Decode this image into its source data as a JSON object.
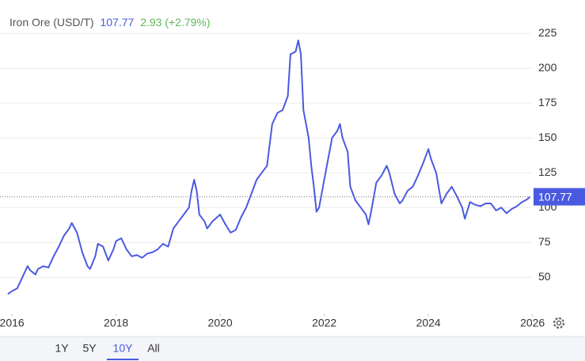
{
  "chart_data": {
    "type": "line",
    "title": "Iron Ore (USD/T)",
    "last_price": 107.77,
    "change": "2.93 (+2.79%)",
    "xlim": [
      2015.77,
      2025.99
    ],
    "xticks": [
      2016,
      2018,
      2020,
      2022,
      2024,
      2026
    ],
    "ylim": [
      24,
      249
    ],
    "yticks": [
      50,
      75,
      100,
      125,
      150,
      175,
      200,
      225
    ],
    "grid": true,
    "ranges": [
      "1Y",
      "5Y",
      "10Y",
      "All"
    ],
    "selected_range": "10Y",
    "series": [
      {
        "name": "Iron Ore",
        "color": "#4a5ae0",
        "x": [
          2015.92,
          2016.0,
          2016.1,
          2016.2,
          2016.3,
          2016.35,
          2016.45,
          2016.5,
          2016.6,
          2016.7,
          2016.8,
          2016.9,
          2017.0,
          2017.1,
          2017.15,
          2017.25,
          2017.35,
          2017.45,
          2017.5,
          2017.6,
          2017.65,
          2017.75,
          2017.85,
          2017.95,
          2018.0,
          2018.1,
          2018.2,
          2018.3,
          2018.4,
          2018.5,
          2018.6,
          2018.7,
          2018.8,
          2018.9,
          2019.0,
          2019.1,
          2019.2,
          2019.3,
          2019.4,
          2019.45,
          2019.5,
          2019.55,
          2019.6,
          2019.7,
          2019.75,
          2019.85,
          2020.0,
          2020.1,
          2020.2,
          2020.3,
          2020.4,
          2020.5,
          2020.6,
          2020.7,
          2020.8,
          2020.9,
          2021.0,
          2021.1,
          2021.2,
          2021.3,
          2021.35,
          2021.45,
          2021.5,
          2021.55,
          2021.6,
          2021.7,
          2021.75,
          2021.8,
          2021.85,
          2021.9,
          2022.0,
          2022.1,
          2022.15,
          2022.25,
          2022.3,
          2022.35,
          2022.45,
          2022.5,
          2022.6,
          2022.7,
          2022.8,
          2022.85,
          2022.9,
          2023.0,
          2023.1,
          2023.2,
          2023.25,
          2023.35,
          2023.45,
          2023.5,
          2023.6,
          2023.7,
          2023.8,
          2023.9,
          2024.0,
          2024.05,
          2024.15,
          2024.25,
          2024.35,
          2024.45,
          2024.55,
          2024.65,
          2024.7,
          2024.8,
          2024.9,
          2025.0,
          2025.1,
          2025.2,
          2025.3,
          2025.4,
          2025.5,
          2025.6,
          2025.7,
          2025.8,
          2025.9,
          2025.95
        ],
        "values": [
          38,
          40,
          42,
          50,
          58,
          55,
          52,
          56,
          58,
          57,
          65,
          72,
          80,
          85,
          89,
          82,
          68,
          58,
          56,
          65,
          74,
          72,
          62,
          70,
          76,
          78,
          70,
          65,
          66,
          64,
          67,
          68,
          70,
          74,
          72,
          85,
          90,
          95,
          100,
          112,
          120,
          112,
          95,
          90,
          85,
          90,
          95,
          88,
          82,
          84,
          93,
          100,
          110,
          120,
          125,
          130,
          160,
          168,
          170,
          180,
          210,
          212,
          220,
          210,
          170,
          150,
          130,
          115,
          97,
          100,
          120,
          140,
          150,
          155,
          160,
          150,
          140,
          115,
          105,
          100,
          95,
          88,
          97,
          118,
          123,
          130,
          125,
          110,
          103,
          105,
          112,
          115,
          123,
          132,
          142,
          135,
          125,
          103,
          110,
          115,
          108,
          100,
          92,
          104,
          102,
          101,
          103,
          103,
          98,
          100,
          96,
          99,
          101,
          104,
          106,
          107.77
        ]
      }
    ]
  }
}
